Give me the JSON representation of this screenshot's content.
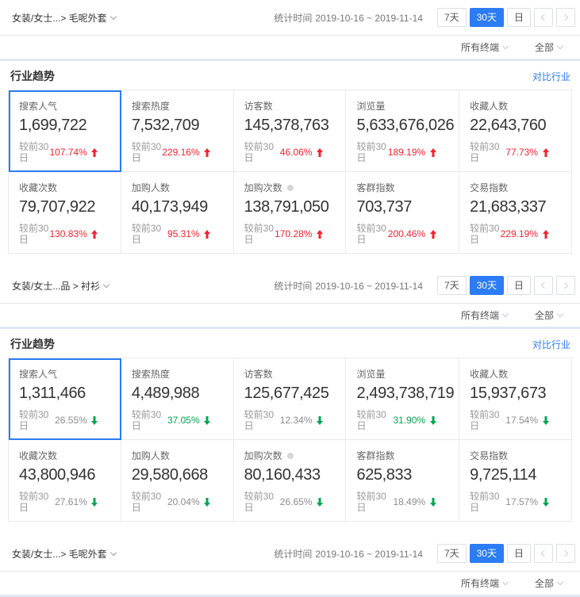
{
  "colors": {
    "accent_blue": "#2b7cf5",
    "up_red": "#f5222d",
    "down_green": "#00a650",
    "divider_band": "#dfe9f3"
  },
  "panels": [
    {
      "breadcrumb": "女装/女士...> 毛呢外套",
      "stat_label": "统计时间",
      "stat_range": "2019-10-16 ~ 2019-11-14",
      "range_buttons": [
        "7天",
        "30天",
        "日"
      ],
      "selected_range": "30天",
      "filters": {
        "terminal": "所有终端",
        "category": "全部"
      },
      "section": {
        "title": "行业趋势",
        "compare_link": "对比行业",
        "compare_label": "较前30日",
        "metrics": [
          {
            "label": "搜索人气",
            "value": "1,699,722",
            "pct": "107.74%",
            "dir": "up",
            "pct_color": "red",
            "selected": true
          },
          {
            "label": "搜索热度",
            "value": "7,532,709",
            "pct": "229.16%",
            "dir": "up",
            "pct_color": "red"
          },
          {
            "label": "访客数",
            "value": "145,378,763",
            "pct": "46.06%",
            "dir": "up",
            "pct_color": "red"
          },
          {
            "label": "浏览量",
            "value": "5,633,676,026",
            "pct": "189.19%",
            "dir": "up",
            "pct_color": "red"
          },
          {
            "label": "收藏人数",
            "value": "22,643,760",
            "pct": "77.73%",
            "dir": "up",
            "pct_color": "red"
          },
          {
            "label": "收藏次数",
            "value": "79,707,922",
            "pct": "130.83%",
            "dir": "up",
            "pct_color": "red"
          },
          {
            "label": "加购人数",
            "value": "40,173,949",
            "pct": "95.31%",
            "dir": "up",
            "pct_color": "red"
          },
          {
            "label": "加购次数",
            "value": "138,791,050",
            "pct": "170.28%",
            "dir": "up",
            "pct_color": "red",
            "info": true
          },
          {
            "label": "客群指数",
            "value": "703,737",
            "pct": "200.46%",
            "dir": "up",
            "pct_color": "red"
          },
          {
            "label": "交易指数",
            "value": "21,683,337",
            "pct": "229.19%",
            "dir": "up",
            "pct_color": "red"
          }
        ]
      }
    },
    {
      "breadcrumb": "女装/女士...品 > 衬衫",
      "stat_label": "统计时间",
      "stat_range": "2019-10-16 ~ 2019-11-14",
      "range_buttons": [
        "7天",
        "30天",
        "日"
      ],
      "selected_range": "30天",
      "filters": {
        "terminal": "所有终端",
        "category": "全部"
      },
      "section": {
        "title": "行业趋势",
        "compare_link": "对比行业",
        "compare_label": "较前30日",
        "metrics": [
          {
            "label": "搜索人气",
            "value": "1,311,466",
            "pct": "26.55%",
            "dir": "down",
            "pct_color": "gray",
            "selected": true
          },
          {
            "label": "搜索热度",
            "value": "4,489,988",
            "pct": "37.05%",
            "dir": "down",
            "pct_color": "green"
          },
          {
            "label": "访客数",
            "value": "125,677,425",
            "pct": "12.34%",
            "dir": "down",
            "pct_color": "gray"
          },
          {
            "label": "浏览量",
            "value": "2,493,738,719",
            "pct": "31.90%",
            "dir": "down",
            "pct_color": "green"
          },
          {
            "label": "收藏人数",
            "value": "15,937,673",
            "pct": "17.54%",
            "dir": "down",
            "pct_color": "gray"
          },
          {
            "label": "收藏次数",
            "value": "43,800,946",
            "pct": "27.61%",
            "dir": "down",
            "pct_color": "gray"
          },
          {
            "label": "加购人数",
            "value": "29,580,668",
            "pct": "20.04%",
            "dir": "down",
            "pct_color": "gray"
          },
          {
            "label": "加购次数",
            "value": "80,160,433",
            "pct": "26.65%",
            "dir": "down",
            "pct_color": "gray",
            "info": true
          },
          {
            "label": "客群指数",
            "value": "625,833",
            "pct": "18.49%",
            "dir": "down",
            "pct_color": "gray"
          },
          {
            "label": "交易指数",
            "value": "9,725,114",
            "pct": "17.57%",
            "dir": "down",
            "pct_color": "gray"
          }
        ]
      }
    },
    {
      "breadcrumb": "女装/女士...> 毛呢外套",
      "stat_label": "统计时间",
      "stat_range": "2019-10-16 ~ 2019-11-14",
      "range_buttons": [
        "7天",
        "30天",
        "日"
      ],
      "selected_range": "30天",
      "filters": {
        "terminal": "所有终端",
        "category": "全部"
      }
    }
  ]
}
